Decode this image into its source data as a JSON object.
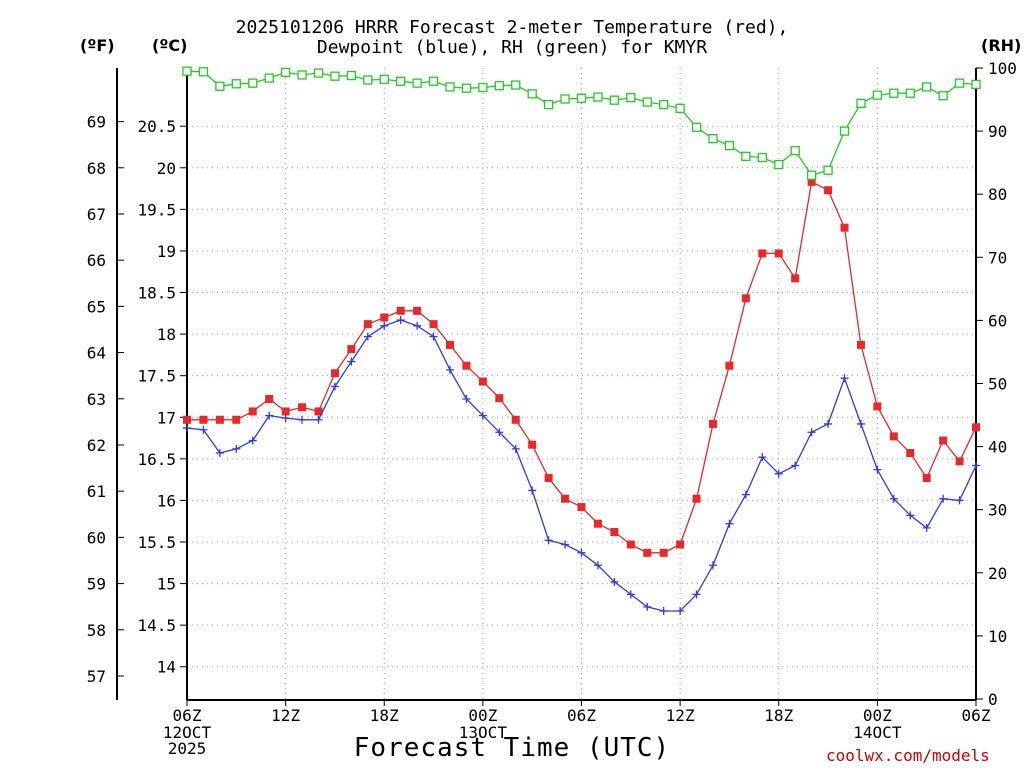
{
  "chart_data": {
    "type": "line",
    "title_line1": "2025101206 HRRR Forecast 2-meter Temperature (red),",
    "title_line2": "Dewpoint (blue), RH (green) for KMYR",
    "axis_left_outer_unit": "(ºF)",
    "axis_left_inner_unit": "(ºC)",
    "axis_right_unit": "(RH)",
    "xlabel": "Forecast Time (UTC)",
    "credit": "coolwx.com/models",
    "x_ticks": [
      {
        "h": 0,
        "label": "06Z",
        "sub": [
          "12OCT",
          "2025"
        ]
      },
      {
        "h": 6,
        "label": "12Z",
        "sub": []
      },
      {
        "h": 12,
        "label": "18Z",
        "sub": []
      },
      {
        "h": 18,
        "label": "00Z",
        "sub": [
          "13OCT"
        ]
      },
      {
        "h": 24,
        "label": "06Z",
        "sub": []
      },
      {
        "h": 30,
        "label": "12Z",
        "sub": []
      },
      {
        "h": 36,
        "label": "18Z",
        "sub": []
      },
      {
        "h": 42,
        "label": "00Z",
        "sub": [
          "14OCT"
        ]
      },
      {
        "h": 48,
        "label": "06Z",
        "sub": []
      }
    ],
    "x_range": [
      0,
      48
    ],
    "celsius_range": [
      13.6,
      21.2
    ],
    "celsius_ticks": [
      "14",
      "14.5",
      "15",
      "15.5",
      "16",
      "16.5",
      "17",
      "17.5",
      "18",
      "18.5",
      "19",
      "19.5",
      "20",
      "20.5"
    ],
    "fahrenheit_ticks": [
      "57",
      "58",
      "59",
      "60",
      "61",
      "62",
      "63",
      "64",
      "65",
      "66",
      "67",
      "68",
      "69"
    ],
    "rh_range": [
      0,
      100
    ],
    "rh_ticks": [
      "0",
      "10",
      "20",
      "30",
      "40",
      "50",
      "60",
      "70",
      "80",
      "90",
      "100"
    ],
    "series": [
      {
        "name": "Temperature",
        "color": "#e8282a",
        "marker": "filled-square",
        "values": [
          16.97,
          16.97,
          16.97,
          16.97,
          17.07,
          17.22,
          17.07,
          17.12,
          17.07,
          17.53,
          17.82,
          18.12,
          18.2,
          18.28,
          18.28,
          18.12,
          17.87,
          17.62,
          17.43,
          17.23,
          16.97,
          16.67,
          16.27,
          16.02,
          15.92,
          15.72,
          15.62,
          15.47,
          15.37,
          15.37,
          15.47,
          16.02,
          16.92,
          17.62,
          18.43,
          18.97,
          18.97,
          18.67,
          19.83,
          19.73,
          19.28,
          17.87,
          17.13,
          16.77,
          16.57,
          16.27,
          16.72,
          16.47,
          16.88
        ]
      },
      {
        "name": "Dewpoint",
        "color": "#2b3de0",
        "marker": "plus",
        "values": [
          16.87,
          16.85,
          16.57,
          16.62,
          16.72,
          17.02,
          16.99,
          16.97,
          16.97,
          17.37,
          17.67,
          17.97,
          18.1,
          18.17,
          18.1,
          17.97,
          17.57,
          17.22,
          17.02,
          16.82,
          16.62,
          16.12,
          15.52,
          15.47,
          15.37,
          15.22,
          15.02,
          14.87,
          14.72,
          14.67,
          14.67,
          14.87,
          15.22,
          15.72,
          16.07,
          16.52,
          16.32,
          16.42,
          16.82,
          16.92,
          17.47,
          16.92,
          16.37,
          16.02,
          15.82,
          15.67,
          16.02,
          16.0,
          16.42
        ]
      },
      {
        "name": "RH",
        "color": "#22cc22",
        "marker": "open-square",
        "values": [
          99.5,
          99.4,
          97.1,
          97.5,
          97.6,
          98.4,
          99.3,
          98.9,
          99.2,
          98.7,
          98.8,
          98.1,
          98.2,
          97.9,
          97.6,
          97.9,
          97.0,
          96.8,
          96.9,
          97.2,
          97.3,
          95.9,
          94.2,
          95.1,
          95.2,
          95.4,
          94.9,
          95.3,
          94.6,
          94.2,
          93.6,
          90.6,
          88.8,
          87.7,
          86.0,
          85.8,
          84.7,
          86.9,
          83.0,
          83.8,
          90.0,
          94.4,
          95.7,
          96.0,
          96.0,
          97.0,
          95.6,
          97.6,
          97.4
        ]
      }
    ]
  }
}
